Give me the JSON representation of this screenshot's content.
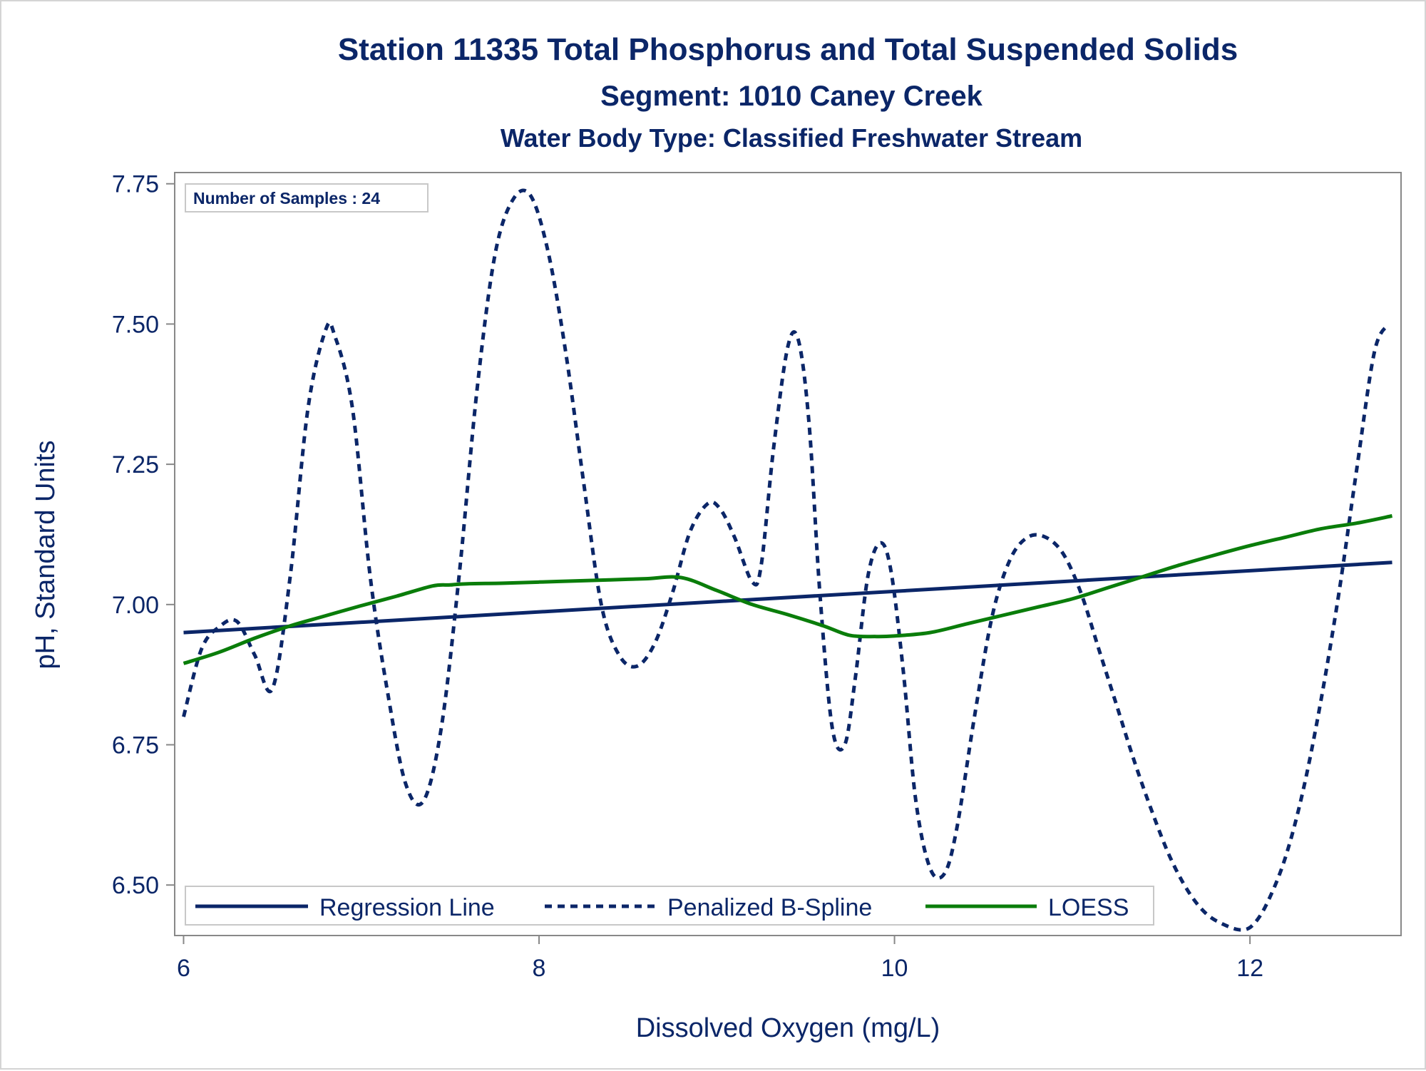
{
  "chart_data": {
    "type": "line",
    "title": "Station 11335  Total Phosphorus and Total Suspended Solids",
    "subtitle": "Segment: 1010  Caney Creek",
    "subtitle2": "Water Body Type: Classified Freshwater Stream",
    "xlabel": "Dissolved Oxygen (mg/L)",
    "ylabel": "pH, Standard Units",
    "xlim": [
      5.95,
      12.85
    ],
    "ylim": [
      6.41,
      7.77
    ],
    "xticks": [
      6,
      8,
      10,
      12
    ],
    "xtick_labels": [
      "6",
      "8",
      "10",
      "12"
    ],
    "yticks": [
      6.5,
      6.75,
      7.0,
      7.25,
      7.5,
      7.75
    ],
    "ytick_labels": [
      "6.50",
      "6.75",
      "7.00",
      "7.25",
      "7.50",
      "7.75"
    ],
    "grid": false,
    "inset_text": "Number of Samples : 24",
    "legend_position": "bottom-inside",
    "series": [
      {
        "name": "Regression Line",
        "style": "solid",
        "color": "#0b2668",
        "x": [
          6.0,
          12.8
        ],
        "y": [
          6.95,
          7.075
        ]
      },
      {
        "name": "Penalized B-Spline",
        "style": "dashed",
        "color": "#0b2668",
        "x": [
          6.0,
          6.1,
          6.2,
          6.3,
          6.4,
          6.5,
          6.6,
          6.7,
          6.8,
          6.85,
          6.95,
          7.05,
          7.15,
          7.25,
          7.35,
          7.45,
          7.55,
          7.65,
          7.75,
          7.85,
          7.95,
          8.05,
          8.15,
          8.25,
          8.35,
          8.45,
          8.55,
          8.65,
          8.75,
          8.85,
          8.95,
          9.02,
          9.1,
          9.2,
          9.25,
          9.32,
          9.4,
          9.46,
          9.52,
          9.58,
          9.65,
          9.72,
          9.78,
          9.85,
          9.92,
          9.98,
          10.05,
          10.12,
          10.2,
          10.28,
          10.35,
          10.45,
          10.55,
          10.65,
          10.75,
          10.85,
          10.95,
          11.05,
          11.15,
          11.25,
          11.35,
          11.45,
          11.55,
          11.65,
          11.75,
          11.85,
          11.95,
          12.02,
          12.1,
          12.2,
          12.3,
          12.4,
          12.5,
          12.6,
          12.7,
          12.78
        ],
        "y": [
          6.8,
          6.92,
          6.96,
          6.97,
          6.91,
          6.85,
          7.05,
          7.35,
          7.49,
          7.48,
          7.35,
          7.05,
          6.84,
          6.68,
          6.65,
          6.78,
          7.05,
          7.38,
          7.62,
          7.72,
          7.73,
          7.63,
          7.45,
          7.22,
          7.0,
          6.91,
          6.89,
          6.93,
          7.02,
          7.13,
          7.18,
          7.17,
          7.12,
          7.04,
          7.07,
          7.28,
          7.46,
          7.47,
          7.32,
          7.02,
          6.78,
          6.75,
          6.87,
          7.05,
          7.11,
          7.06,
          6.88,
          6.65,
          6.53,
          6.52,
          6.6,
          6.8,
          6.98,
          7.08,
          7.12,
          7.12,
          7.09,
          7.02,
          6.92,
          6.82,
          6.72,
          6.63,
          6.55,
          6.49,
          6.45,
          6.43,
          6.42,
          6.43,
          6.47,
          6.55,
          6.67,
          6.83,
          7.02,
          7.24,
          7.45,
          7.5
        ]
      },
      {
        "name": "LOESS",
        "style": "solid",
        "color": "#0a7d0a",
        "x": [
          6.0,
          6.2,
          6.4,
          6.6,
          6.8,
          7.0,
          7.2,
          7.4,
          7.5,
          7.6,
          7.8,
          8.0,
          8.2,
          8.4,
          8.6,
          8.8,
          9.0,
          9.2,
          9.4,
          9.6,
          9.75,
          9.9,
          10.0,
          10.2,
          10.4,
          10.6,
          10.8,
          11.0,
          11.2,
          11.4,
          11.6,
          11.8,
          12.0,
          12.2,
          12.4,
          12.6,
          12.8
        ],
        "y": [
          6.895,
          6.915,
          6.94,
          6.962,
          6.98,
          6.998,
          7.015,
          7.033,
          7.035,
          7.037,
          7.038,
          7.04,
          7.042,
          7.044,
          7.046,
          7.048,
          7.025,
          7.0,
          6.982,
          6.962,
          6.945,
          6.943,
          6.944,
          6.95,
          6.965,
          6.98,
          6.995,
          7.01,
          7.03,
          7.05,
          7.07,
          7.088,
          7.105,
          7.12,
          7.135,
          7.145,
          7.158
        ]
      }
    ]
  }
}
